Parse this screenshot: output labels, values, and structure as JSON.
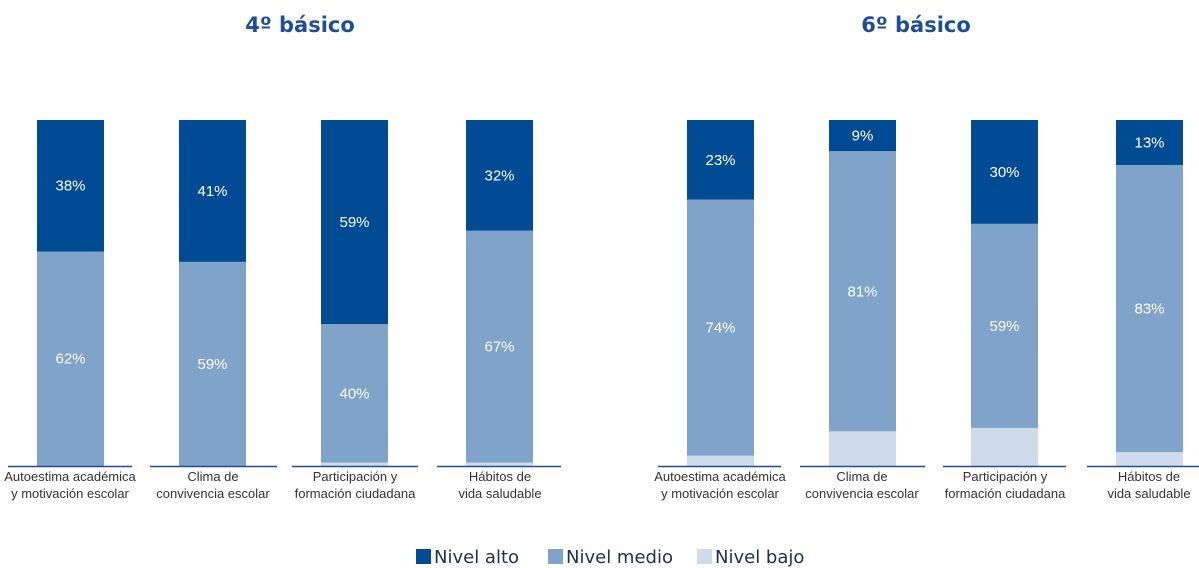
{
  "chart_data": [
    {
      "type": "bar",
      "stacked": true,
      "title": "4º básico",
      "categories": [
        [
          "Autoestima académica",
          "y motivación escolar"
        ],
        [
          "Clima de",
          "convivencia escolar"
        ],
        [
          "Participación y",
          "formación ciudadana"
        ],
        [
          "Hábitos de",
          "vida saludable"
        ]
      ],
      "series": [
        {
          "name": "Nivel bajo",
          "values": [
            0,
            0,
            1,
            1
          ]
        },
        {
          "name": "Nivel medio",
          "values": [
            62,
            59,
            40,
            67
          ]
        },
        {
          "name": "Nivel alto",
          "values": [
            38,
            41,
            59,
            32
          ]
        }
      ],
      "ylim": [
        0,
        100
      ],
      "grid": false
    },
    {
      "type": "bar",
      "stacked": true,
      "title": "6º básico",
      "categories": [
        [
          "Autoestima académica",
          "y motivación escolar"
        ],
        [
          "Clima de",
          "convivencia escolar"
        ],
        [
          "Participación y",
          "formación ciudadana"
        ],
        [
          "Hábitos de",
          "vida saludable"
        ]
      ],
      "series": [
        {
          "name": "Nivel bajo",
          "values": [
            3,
            10,
            11,
            4
          ]
        },
        {
          "name": "Nivel medio",
          "values": [
            74,
            81,
            59,
            83
          ]
        },
        {
          "name": "Nivel alto",
          "values": [
            23,
            9,
            30,
            13
          ]
        }
      ],
      "ylim": [
        0,
        100
      ],
      "grid": false
    }
  ],
  "legend": {
    "position": "bottom",
    "items": [
      {
        "label": "Nivel alto",
        "color": "#004b93"
      },
      {
        "label": "Nivel medio",
        "color": "#7fa3c9"
      },
      {
        "label": "Nivel bajo",
        "color": "#cfdbea"
      }
    ]
  },
  "colors": {
    "alto": "#004b93",
    "medio": "#7fa3c9",
    "bajo": "#cfdbea",
    "axis": "#1f4e96"
  }
}
